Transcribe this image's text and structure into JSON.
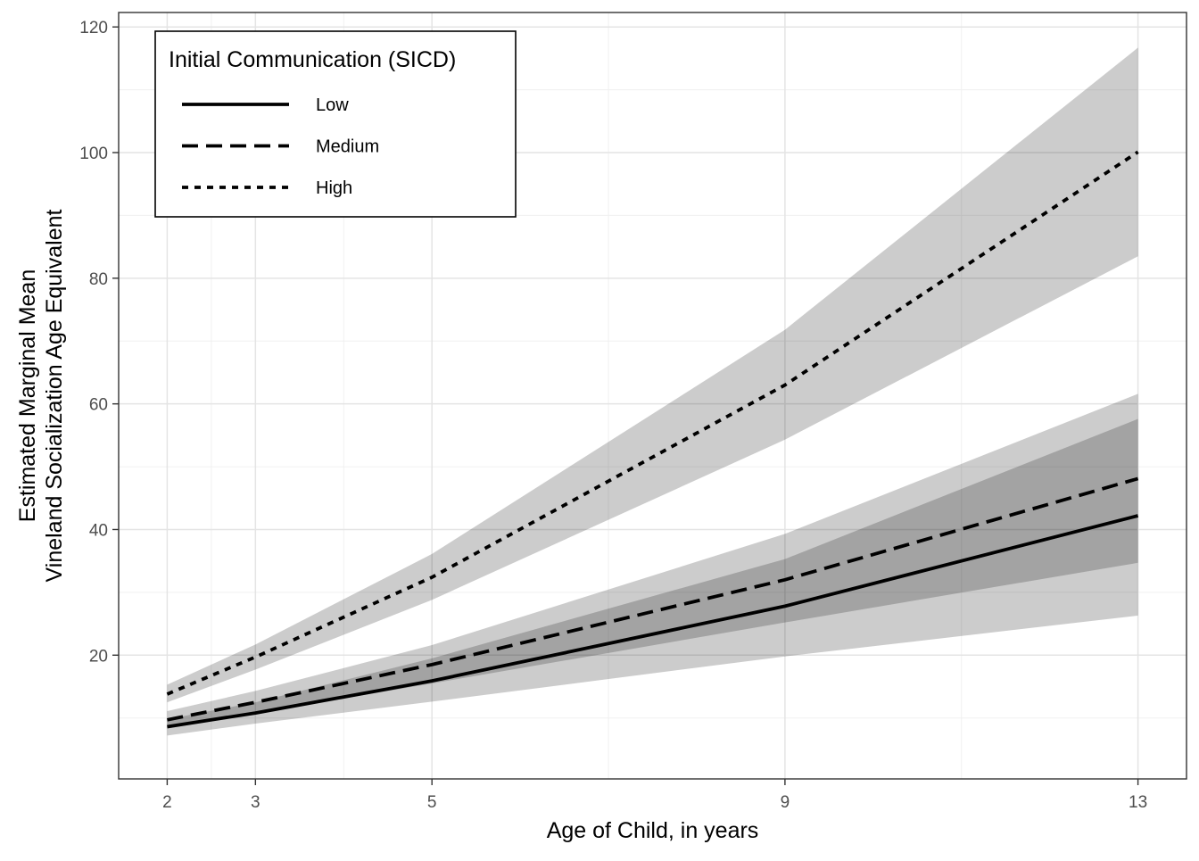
{
  "chart_data": {
    "type": "line",
    "title": "",
    "xlabel": "Age of Child, in years",
    "ylabel_lines": [
      "Estimated Marginal Mean",
      "Vineland Socialization Age Equivalent"
    ],
    "xlim": [
      1.45,
      13.55
    ],
    "ylim": [
      0.3,
      122.3
    ],
    "x_ticks": [
      2,
      3,
      5,
      9,
      13
    ],
    "x_tick_labels": [
      "2",
      "3",
      "5",
      "9",
      "13"
    ],
    "x_minor_gridlines": [
      2.5,
      4,
      7,
      11
    ],
    "y_ticks": [
      20,
      40,
      60,
      80,
      100,
      120
    ],
    "y_tick_labels": [
      "20",
      "40",
      "60",
      "80",
      "100",
      "120"
    ],
    "y_minor_gridlines": [
      10,
      30,
      50,
      70,
      90,
      110
    ],
    "grid": true,
    "legend": {
      "title": "Initial Communication (SICD)",
      "position": "top-left",
      "entries": [
        {
          "label": "Low",
          "linestyle": "solid"
        },
        {
          "label": "Medium",
          "linestyle": "dashed"
        },
        {
          "label": "High",
          "linestyle": "dotted"
        }
      ]
    },
    "series": [
      {
        "name": "Low",
        "linestyle": "solid",
        "x": [
          2,
          3,
          5,
          9,
          13
        ],
        "y": [
          8.6,
          10.8,
          15.9,
          27.8,
          42.2
        ],
        "ci_low": [
          7.2,
          9.1,
          12.6,
          19.8,
          26.3
        ],
        "ci_high": [
          9.8,
          12.5,
          19.5,
          35.3,
          57.6
        ]
      },
      {
        "name": "Medium",
        "linestyle": "dashed",
        "x": [
          2,
          3,
          5,
          9,
          13
        ],
        "y": [
          9.7,
          12.5,
          18.5,
          32.0,
          48.1
        ],
        "ci_low": [
          8.3,
          10.7,
          15.5,
          25.2,
          34.7
        ],
        "ci_high": [
          11.1,
          14.3,
          21.6,
          39.3,
          61.6
        ]
      },
      {
        "name": "High",
        "linestyle": "dotted",
        "x": [
          2,
          3,
          5,
          9,
          13
        ],
        "y": [
          13.8,
          19.7,
          32.4,
          63.0,
          100.1
        ],
        "ci_low": [
          12.5,
          17.7,
          28.8,
          54.3,
          83.5
        ],
        "ci_high": [
          15.3,
          21.7,
          36.1,
          71.8,
          116.7
        ]
      }
    ]
  }
}
